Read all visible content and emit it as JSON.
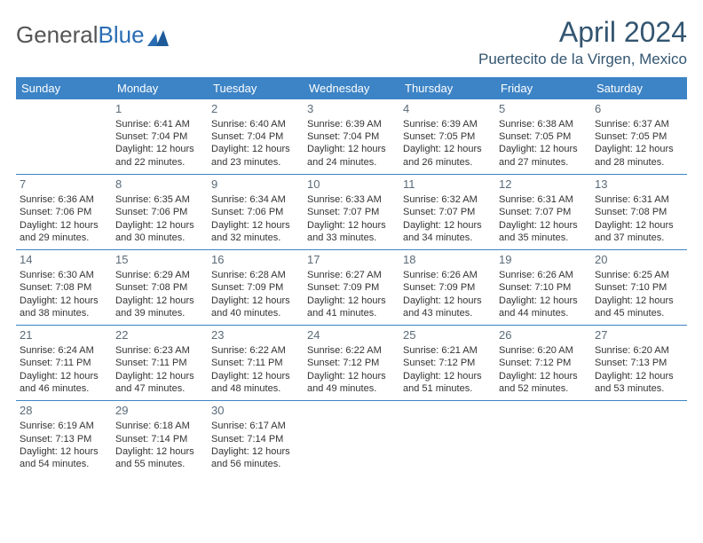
{
  "logo": {
    "text1": "General",
    "text2": "Blue"
  },
  "header": {
    "month_title": "April 2024",
    "location": "Puertecito de la Virgen, Mexico"
  },
  "colors": {
    "header_bg": "#3d84c6",
    "header_text": "#ffffff",
    "title_color": "#335570",
    "border_color": "#3d84c6",
    "daynum_color": "#5a6b78",
    "body_text": "#333333"
  },
  "day_names": [
    "Sunday",
    "Monday",
    "Tuesday",
    "Wednesday",
    "Thursday",
    "Friday",
    "Saturday"
  ],
  "weeks": [
    [
      {
        "day": "",
        "lines": []
      },
      {
        "day": "1",
        "lines": [
          "Sunrise: 6:41 AM",
          "Sunset: 7:04 PM",
          "Daylight: 12 hours and 22 minutes."
        ]
      },
      {
        "day": "2",
        "lines": [
          "Sunrise: 6:40 AM",
          "Sunset: 7:04 PM",
          "Daylight: 12 hours and 23 minutes."
        ]
      },
      {
        "day": "3",
        "lines": [
          "Sunrise: 6:39 AM",
          "Sunset: 7:04 PM",
          "Daylight: 12 hours and 24 minutes."
        ]
      },
      {
        "day": "4",
        "lines": [
          "Sunrise: 6:39 AM",
          "Sunset: 7:05 PM",
          "Daylight: 12 hours and 26 minutes."
        ]
      },
      {
        "day": "5",
        "lines": [
          "Sunrise: 6:38 AM",
          "Sunset: 7:05 PM",
          "Daylight: 12 hours and 27 minutes."
        ]
      },
      {
        "day": "6",
        "lines": [
          "Sunrise: 6:37 AM",
          "Sunset: 7:05 PM",
          "Daylight: 12 hours and 28 minutes."
        ]
      }
    ],
    [
      {
        "day": "7",
        "lines": [
          "Sunrise: 6:36 AM",
          "Sunset: 7:06 PM",
          "Daylight: 12 hours and 29 minutes."
        ]
      },
      {
        "day": "8",
        "lines": [
          "Sunrise: 6:35 AM",
          "Sunset: 7:06 PM",
          "Daylight: 12 hours and 30 minutes."
        ]
      },
      {
        "day": "9",
        "lines": [
          "Sunrise: 6:34 AM",
          "Sunset: 7:06 PM",
          "Daylight: 12 hours and 32 minutes."
        ]
      },
      {
        "day": "10",
        "lines": [
          "Sunrise: 6:33 AM",
          "Sunset: 7:07 PM",
          "Daylight: 12 hours and 33 minutes."
        ]
      },
      {
        "day": "11",
        "lines": [
          "Sunrise: 6:32 AM",
          "Sunset: 7:07 PM",
          "Daylight: 12 hours and 34 minutes."
        ]
      },
      {
        "day": "12",
        "lines": [
          "Sunrise: 6:31 AM",
          "Sunset: 7:07 PM",
          "Daylight: 12 hours and 35 minutes."
        ]
      },
      {
        "day": "13",
        "lines": [
          "Sunrise: 6:31 AM",
          "Sunset: 7:08 PM",
          "Daylight: 12 hours and 37 minutes."
        ]
      }
    ],
    [
      {
        "day": "14",
        "lines": [
          "Sunrise: 6:30 AM",
          "Sunset: 7:08 PM",
          "Daylight: 12 hours and 38 minutes."
        ]
      },
      {
        "day": "15",
        "lines": [
          "Sunrise: 6:29 AM",
          "Sunset: 7:08 PM",
          "Daylight: 12 hours and 39 minutes."
        ]
      },
      {
        "day": "16",
        "lines": [
          "Sunrise: 6:28 AM",
          "Sunset: 7:09 PM",
          "Daylight: 12 hours and 40 minutes."
        ]
      },
      {
        "day": "17",
        "lines": [
          "Sunrise: 6:27 AM",
          "Sunset: 7:09 PM",
          "Daylight: 12 hours and 41 minutes."
        ]
      },
      {
        "day": "18",
        "lines": [
          "Sunrise: 6:26 AM",
          "Sunset: 7:09 PM",
          "Daylight: 12 hours and 43 minutes."
        ]
      },
      {
        "day": "19",
        "lines": [
          "Sunrise: 6:26 AM",
          "Sunset: 7:10 PM",
          "Daylight: 12 hours and 44 minutes."
        ]
      },
      {
        "day": "20",
        "lines": [
          "Sunrise: 6:25 AM",
          "Sunset: 7:10 PM",
          "Daylight: 12 hours and 45 minutes."
        ]
      }
    ],
    [
      {
        "day": "21",
        "lines": [
          "Sunrise: 6:24 AM",
          "Sunset: 7:11 PM",
          "Daylight: 12 hours and 46 minutes."
        ]
      },
      {
        "day": "22",
        "lines": [
          "Sunrise: 6:23 AM",
          "Sunset: 7:11 PM",
          "Daylight: 12 hours and 47 minutes."
        ]
      },
      {
        "day": "23",
        "lines": [
          "Sunrise: 6:22 AM",
          "Sunset: 7:11 PM",
          "Daylight: 12 hours and 48 minutes."
        ]
      },
      {
        "day": "24",
        "lines": [
          "Sunrise: 6:22 AM",
          "Sunset: 7:12 PM",
          "Daylight: 12 hours and 49 minutes."
        ]
      },
      {
        "day": "25",
        "lines": [
          "Sunrise: 6:21 AM",
          "Sunset: 7:12 PM",
          "Daylight: 12 hours and 51 minutes."
        ]
      },
      {
        "day": "26",
        "lines": [
          "Sunrise: 6:20 AM",
          "Sunset: 7:12 PM",
          "Daylight: 12 hours and 52 minutes."
        ]
      },
      {
        "day": "27",
        "lines": [
          "Sunrise: 6:20 AM",
          "Sunset: 7:13 PM",
          "Daylight: 12 hours and 53 minutes."
        ]
      }
    ],
    [
      {
        "day": "28",
        "lines": [
          "Sunrise: 6:19 AM",
          "Sunset: 7:13 PM",
          "Daylight: 12 hours and 54 minutes."
        ]
      },
      {
        "day": "29",
        "lines": [
          "Sunrise: 6:18 AM",
          "Sunset: 7:14 PM",
          "Daylight: 12 hours and 55 minutes."
        ]
      },
      {
        "day": "30",
        "lines": [
          "Sunrise: 6:17 AM",
          "Sunset: 7:14 PM",
          "Daylight: 12 hours and 56 minutes."
        ]
      },
      {
        "day": "",
        "lines": []
      },
      {
        "day": "",
        "lines": []
      },
      {
        "day": "",
        "lines": []
      },
      {
        "day": "",
        "lines": []
      }
    ]
  ]
}
